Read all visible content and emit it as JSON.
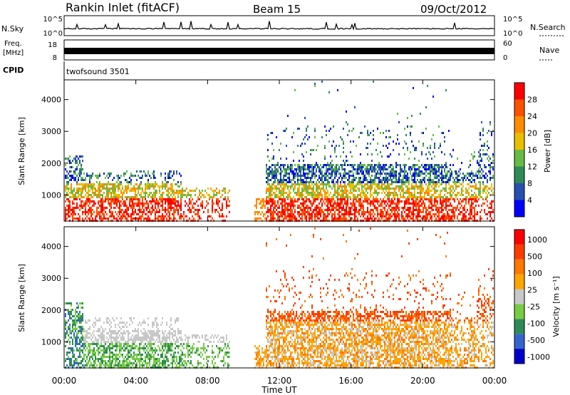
{
  "header": {
    "station": "Rankin Inlet (fitACF)",
    "beam": "Beam 15",
    "date": "09/Oct/2012"
  },
  "top_panels": {
    "nsky_label": "N.Sky",
    "nsky_ticks": [
      "10^5",
      "10^0"
    ],
    "nsearch_label": "N.Search",
    "nsearch_ticks": [
      "10^5",
      "10^0"
    ],
    "freq_label_line1": "Freq.",
    "freq_label_line2": "[MHz]",
    "freq_ticks": [
      "18",
      "8"
    ],
    "nave_label": "Nave",
    "nave_ticks": [
      "60",
      "0"
    ],
    "cpid_label": "CPID",
    "cpid_value": "twofsound 3501"
  },
  "colors": {
    "power_scale": [
      "#0000ff",
      "#2850b0",
      "#2e8b57",
      "#66bb44",
      "#e8c000",
      "#ff8c00",
      "#ff5000",
      "#ff0000"
    ],
    "velocity_scale": [
      "#0000cc",
      "#3366cc",
      "#2e8b57",
      "#77cc44",
      "#c8c8c8",
      "#ffa500",
      "#ff7800",
      "#ff3c00",
      "#ff0000"
    ]
  },
  "chart_data": [
    {
      "type": "heatmap",
      "title": "",
      "xlabel": "",
      "ylabel": "Slant Range [km]",
      "x_range": [
        "00:00",
        "24:00"
      ],
      "y_range": [
        180,
        4620
      ],
      "y_ticks": [
        "1000",
        "2000",
        "3000",
        "4000"
      ],
      "x_ticks": [
        "00:00",
        "04:00",
        "08:00",
        "12:00",
        "16:00",
        "20:00",
        "00:00"
      ],
      "colorbar": {
        "label": "Power [dB]",
        "ticks": [
          "4",
          "8",
          "12",
          "16",
          "20",
          "24",
          "28"
        ],
        "range": [
          0,
          32
        ]
      }
    },
    {
      "type": "heatmap",
      "title": "",
      "xlabel": "Time UT",
      "ylabel": "Slant Range [km]",
      "x_range": [
        "00:00",
        "24:00"
      ],
      "y_range": [
        180,
        4620
      ],
      "y_ticks": [
        "1000",
        "2000",
        "3000",
        "4000"
      ],
      "x_ticks": [
        "00:00",
        "04:00",
        "08:00",
        "12:00",
        "16:00",
        "20:00",
        "00:00"
      ],
      "colorbar": {
        "label": "Velocity [m s⁻¹]",
        "ticks": [
          "1000",
          "500",
          "100",
          "25",
          "-25",
          "-100",
          "-500",
          "-1000"
        ]
      }
    }
  ]
}
